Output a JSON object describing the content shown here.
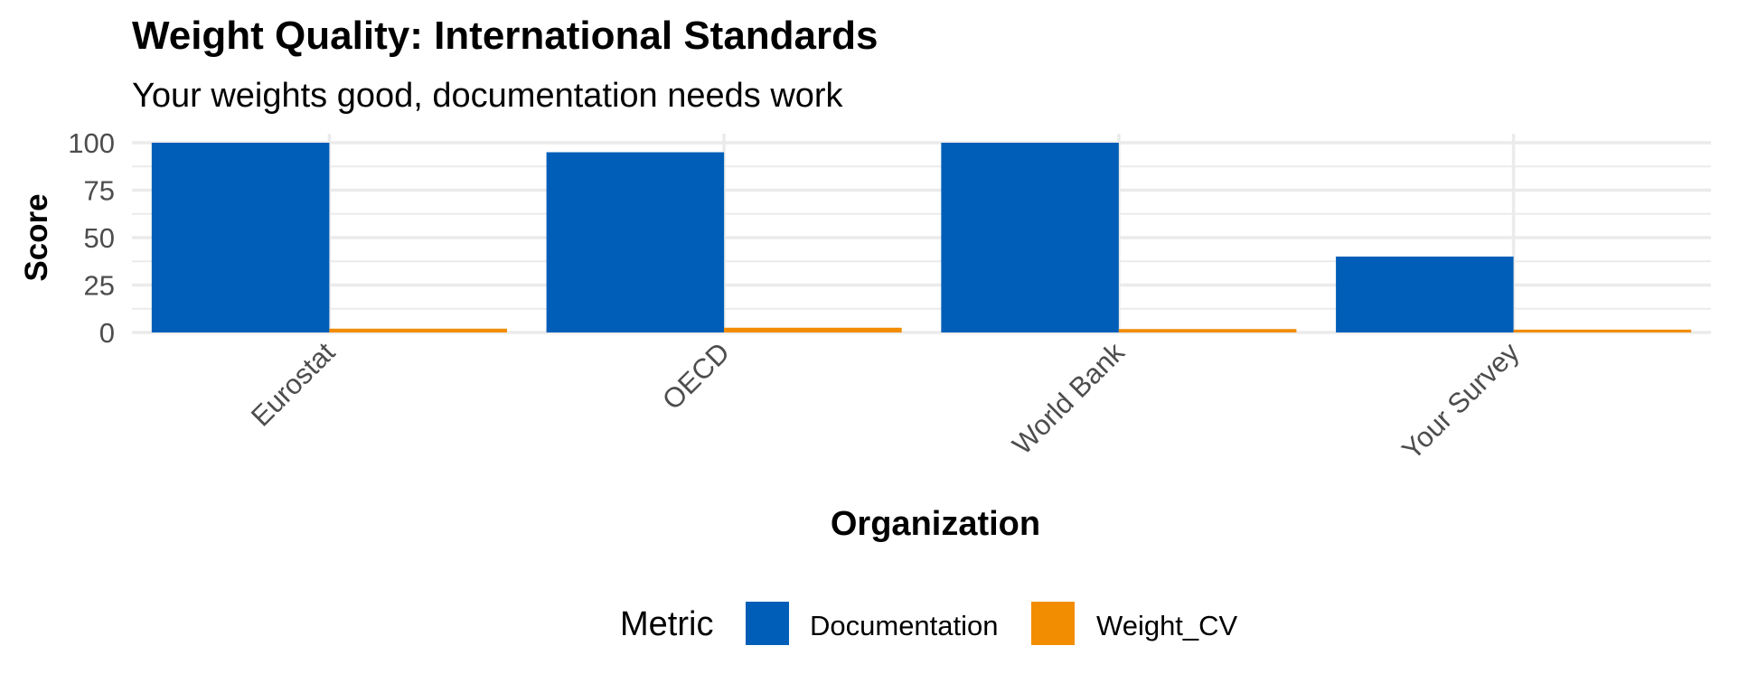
{
  "chart_data": {
    "type": "bar",
    "title": "Weight Quality: International Standards",
    "subtitle": "Your weights good, documentation needs work",
    "xlabel": "Organization",
    "ylabel": "Score",
    "categories": [
      "Eurostat",
      "OECD",
      "World Bank",
      "Your Survey"
    ],
    "series": [
      {
        "name": "Documentation",
        "values": [
          100,
          95,
          100,
          40
        ]
      },
      {
        "name": "Weight_CV",
        "values": [
          2.0,
          2.5,
          1.8,
          1.5
        ]
      }
    ],
    "ylim": [
      0,
      100
    ],
    "yticks": [
      "0",
      "25",
      "50",
      "75",
      "100"
    ],
    "grid": true,
    "legend": {
      "title": "Metric",
      "position": "bottom"
    },
    "colors": {
      "Documentation": "#005EB8",
      "Weight_CV": "#F28C00",
      "grid": "#EBEBEB"
    }
  }
}
